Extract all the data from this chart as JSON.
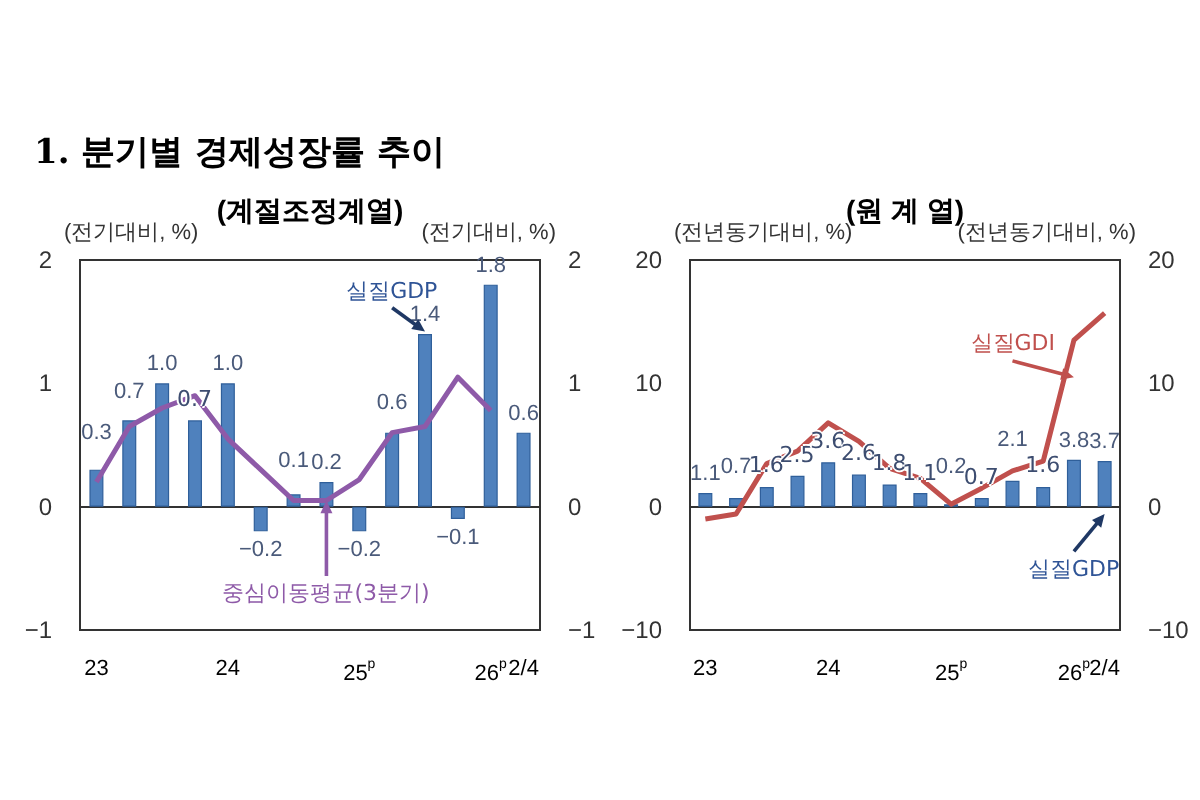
{
  "chart_data": [
    {
      "type": "bar",
      "title": "1. 분기별 경제성장률 추이",
      "subtitle": "(계절조정계열)",
      "ylabel": "(전기대비, %)",
      "y2label": "(전기대비, %)",
      "categories": [
        "23",
        null,
        null,
        null,
        "24",
        null,
        null,
        null,
        "25$^{p}$",
        null,
        null,
        null,
        "26$^{p}$",
        "2/4"
      ],
      "series": [
        {
          "name": "실질GDP",
          "color": "#4f81bd",
          "values": [
            0.3,
            0.7,
            1.0,
            0.7,
            1.0,
            -0.2,
            0.1,
            0.2,
            -0.2,
            0.6,
            1.4,
            -0.1,
            1.8,
            0.6
          ],
          "value_labels": [
            "0.3",
            "0.7",
            "1.0",
            "0.7",
            "1.0",
            "−0.2",
            "0.1",
            "0.2",
            "−0.2",
            "0.6",
            "1.4",
            "−0.1",
            "1.8",
            "0.6"
          ]
        },
        {
          "name": "중심이동평균(3분기)",
          "type": "line",
          "color": "#8e5aa8",
          "values": [
            0.2,
            0.65,
            0.8,
            0.9,
            0.55,
            0.3,
            0.05,
            0.05,
            0.22,
            0.6,
            0.65,
            1.05,
            0.78,
            null
          ]
        }
      ],
      "ylim": [
        -1,
        2
      ],
      "yticks": [
        -1,
        0,
        1,
        2
      ],
      "y2lim": [
        -1,
        2
      ],
      "y2ticks": [
        -1,
        0,
        1,
        2
      ],
      "marker": "none"
    },
    {
      "type": "bar",
      "subtitle": "(원 계 열)",
      "ylabel": "(전년동기대비, %)",
      "y2label": "(전년동기대비, %)",
      "categories": [
        "23",
        null,
        null,
        null,
        "24",
        null,
        null,
        null,
        "25$^{p}$",
        null,
        null,
        null,
        "26$^{p}$",
        "2/4"
      ],
      "series": [
        {
          "name": "실질GDP",
          "color": "#4f81bd",
          "values": [
            1.1,
            0.7,
            1.6,
            2.5,
            3.6,
            2.6,
            1.8,
            1.1,
            0.2,
            0.7,
            2.1,
            1.6,
            3.8,
            3.7
          ],
          "value_labels": [
            "1.1",
            "0.7",
            "1.6",
            "2.5",
            "3.6",
            "2.6",
            "1.8",
            "1.1",
            "0.2",
            "0.7",
            "2.1",
            "1.6",
            "3.8",
            "3.7"
          ]
        },
        {
          "name": "실질GDI",
          "type": "line",
          "color": "#c0504d",
          "values": [
            -1.0,
            -0.6,
            3.5,
            4.5,
            6.8,
            5.3,
            3.1,
            2.3,
            0.2,
            1.5,
            2.9,
            3.7,
            13.5,
            15.7
          ]
        }
      ],
      "ylim": [
        -10,
        20
      ],
      "yticks": [
        -10,
        0,
        10,
        20
      ],
      "y2lim": [
        -10,
        20
      ],
      "y2ticks": [
        -10,
        0,
        10,
        20
      ],
      "marker": "none"
    }
  ]
}
